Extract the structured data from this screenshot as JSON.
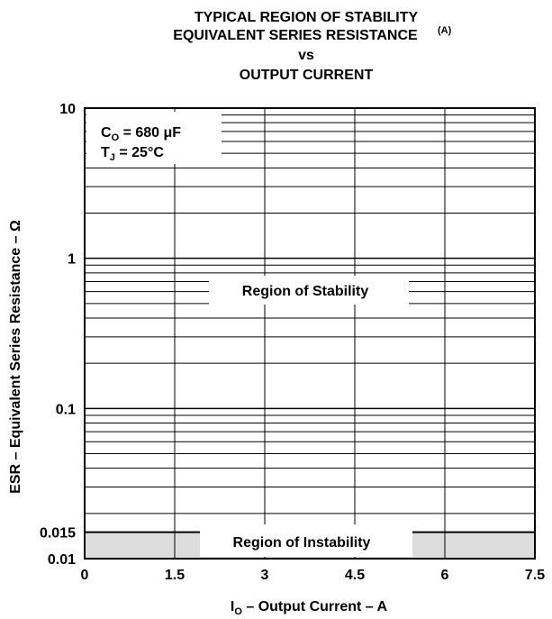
{
  "chart_data": {
    "type": "area",
    "title_lines": [
      "TYPICAL REGION OF STABILITY",
      "EQUIVALENT SERIES RESISTANCE",
      "vs",
      "OUTPUT CURRENT"
    ],
    "title_superscript": "(A)",
    "ylabel": "ESR – Equivalent Series Resistance – Ω",
    "xlabel_prefix": "I",
    "xlabel_sub": "O",
    "xlabel_rest": " – Output Current – A",
    "x_ticks": [
      0,
      1.5,
      3,
      4.5,
      6,
      7.5
    ],
    "x_tick_labels": [
      "0",
      "1.5",
      "3",
      "4.5",
      "6",
      "7.5"
    ],
    "y_ticks": [
      0.01,
      0.015,
      0.1,
      1,
      10
    ],
    "y_tick_labels": [
      "0.01",
      "0.015",
      "0.1",
      "1",
      "10"
    ],
    "xlim": [
      0,
      7.5
    ],
    "ylim": [
      0.01,
      10
    ],
    "yscale": "log",
    "grid": true,
    "conditions": {
      "co_label": "C",
      "co_sub": "O",
      "co_value": " = 680 μF",
      "tj_label": "T",
      "tj_sub": "J",
      "tj_value": " = 25°C"
    },
    "regions": [
      {
        "name": "Region of Stability",
        "y_range": [
          0.015,
          10
        ],
        "fill": "#ffffff"
      },
      {
        "name": "Region of Instability",
        "y_range": [
          0.01,
          0.015
        ],
        "fill": "#dddddd"
      }
    ]
  }
}
